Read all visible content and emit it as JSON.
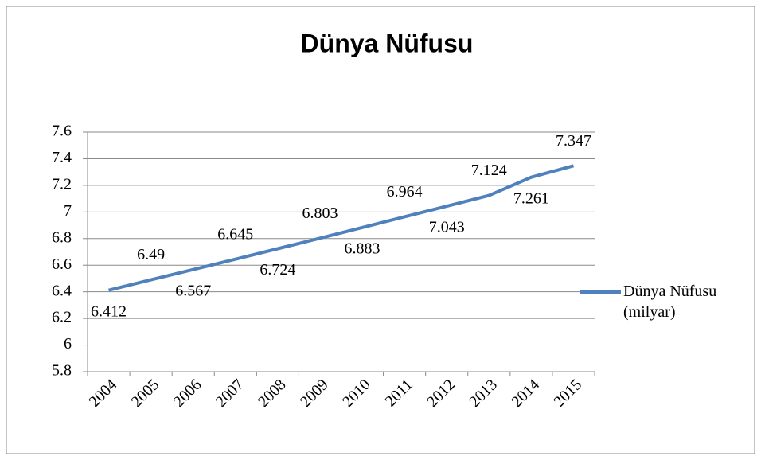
{
  "chart_data": {
    "type": "line",
    "title": "Dünya Nüfusu",
    "categories": [
      "2004",
      "2005",
      "2006",
      "2007",
      "2008",
      "2009",
      "2010",
      "2011",
      "2012",
      "2013",
      "2014",
      "2015"
    ],
    "series": [
      {
        "name": "Dünya Nüfusu (milyar)",
        "color": "#4f81bd",
        "values": [
          6.412,
          6.49,
          6.567,
          6.645,
          6.724,
          6.803,
          6.883,
          6.964,
          7.043,
          7.124,
          7.261,
          7.347
        ]
      }
    ],
    "ylim": [
      5.8,
      7.6
    ],
    "yticks": [
      5.8,
      6,
      6.2,
      6.4,
      6.6,
      6.8,
      7,
      7.2,
      7.4,
      7.6
    ],
    "grid": true,
    "legend": "right"
  }
}
